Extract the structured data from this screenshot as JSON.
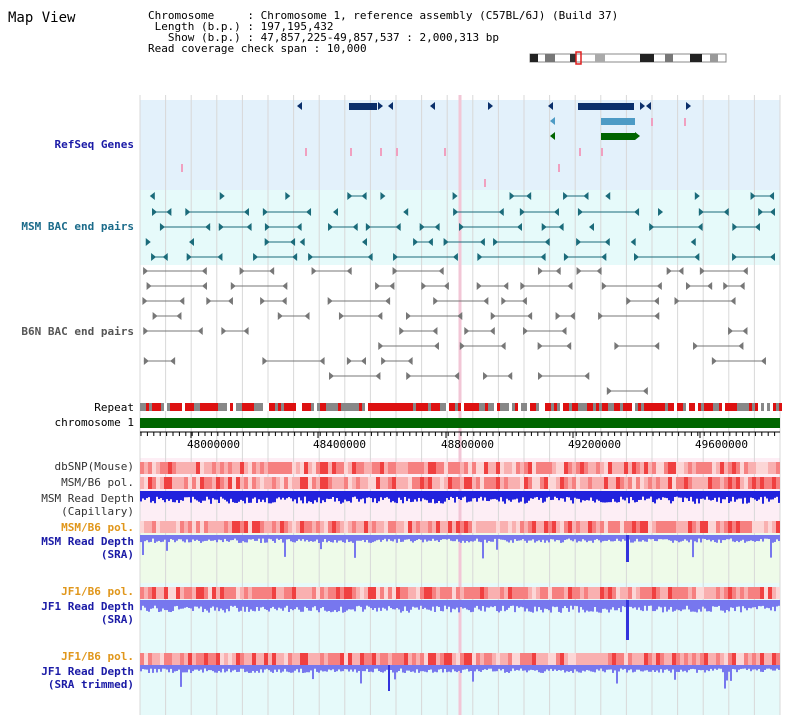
{
  "title": "Map View",
  "info": {
    "chromosome_key": "Chromosome",
    "chromosome_val": "Chromosome 1, reference assembly (C57BL/6J) (Build 37)",
    "length_key": "Length (b.p.)",
    "length_val": "197,195,432",
    "show_key": "Show (b.p.)",
    "show_val": "47,857,225-49,857,537 : 2,000,313 bp",
    "coverage_key": "Read coverage check span",
    "coverage_val": "10,000"
  },
  "tracks": {
    "refseq": "RefSeq Genes",
    "msm_bac": "MSM BAC end pairs",
    "b6n_bac": "B6N BAC end pairs",
    "repeat": "Repeat",
    "chromosome": "chromosome 1",
    "dbsnp": "dbSNP(Mouse)",
    "msm_b6_pol_1": "MSM/B6 pol.",
    "msm_read_depth_cap_1": "MSM Read Depth",
    "msm_read_depth_cap_2": "(Capillary)",
    "msm_b6_pol_2": "MSM/B6 pol.",
    "msm_read_depth_sra_1": "MSM Read Depth",
    "msm_read_depth_sra_2": "(SRA)",
    "jf1_b6_pol_1": "JF1/B6 pol.",
    "jf1_read_depth_sra_1": "JF1 Read Depth",
    "jf1_read_depth_sra_2": "(SRA)",
    "jf1_b6_pol_2": "JF1/B6 pol.",
    "jf1_read_depth_trim_1": "JF1 Read Depth",
    "jf1_read_depth_trim_2": "(SRA trimmed)"
  },
  "axis": {
    "ticks": [
      "48000000",
      "48400000",
      "48800000",
      "49200000",
      "49600000"
    ]
  },
  "colors": {
    "refseq_bg": "#e3f1fb",
    "msm_bac_bg": "#e6fafa",
    "refseq_gene": "#0a2f6b",
    "refseq_alt": "#4d9bc5",
    "refseq_green": "#006400",
    "msm_bac": "#1b6b7a",
    "b6n_bac": "#777777",
    "repeat_red": "#dd1111",
    "repeat_gray": "#888888",
    "chromosome_green": "#006600",
    "depth_blue": "#2222dd",
    "sra_blue": "#7777ee"
  }
}
